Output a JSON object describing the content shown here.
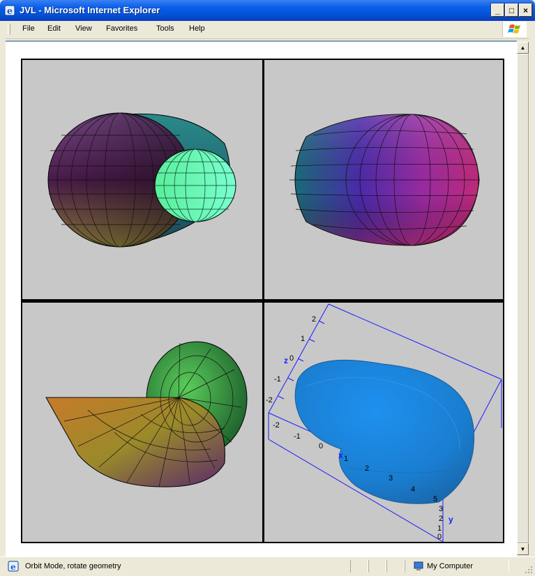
{
  "window": {
    "title": "JVL - Microsoft Internet Explorer",
    "buttons": {
      "minimize": "_",
      "maximize": "□",
      "close": "×"
    }
  },
  "menu": {
    "items": [
      "File",
      "Edit",
      "View",
      "Favorites",
      "Tools",
      "Help"
    ]
  },
  "status": {
    "message": "Orbit Mode, rotate geometry",
    "zone": "My Computer"
  },
  "viewer": {
    "panes": [
      {
        "name": "wireframe-shell-top-left"
      },
      {
        "name": "wireframe-shell-top-right"
      },
      {
        "name": "wireframe-spiral-bottom-left"
      },
      {
        "name": "blue-shape-with-axes-bottom-right"
      }
    ],
    "axes": {
      "z_label": "z",
      "x_label": "x",
      "y_label": "y",
      "z_ticks": [
        "2",
        "1",
        "0",
        "-1",
        "-2"
      ],
      "x_ticks": [
        "-2",
        "-1",
        "0",
        "1",
        "2",
        "3",
        "4",
        "5"
      ],
      "y_ticks": [
        "3",
        "2",
        "1",
        "0"
      ]
    },
    "colors": {
      "bounding_box": "#1a1aff",
      "shape": "#1f8ee6",
      "background": "#c8c8c8"
    }
  }
}
